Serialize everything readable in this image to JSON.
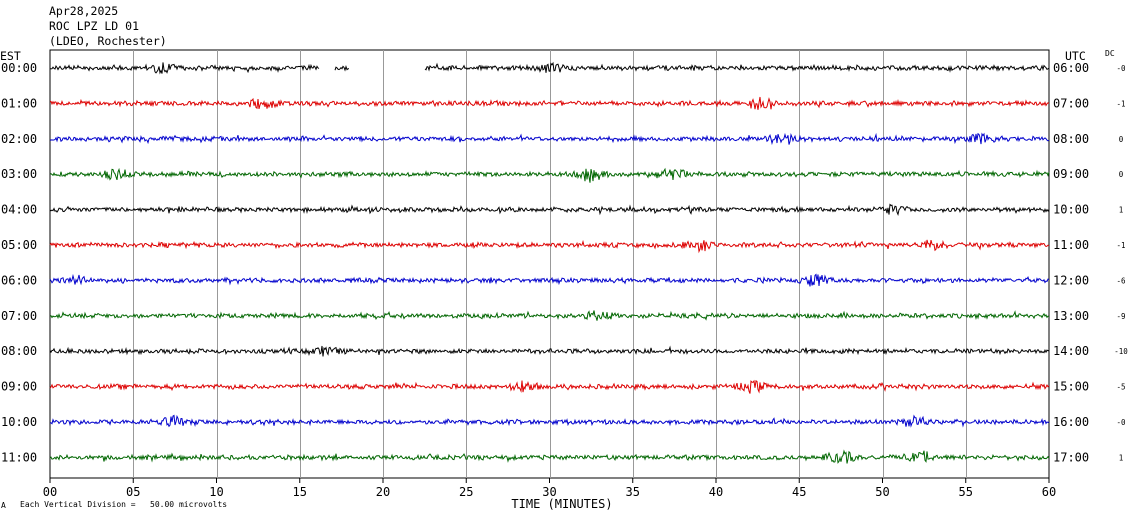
{
  "header": {
    "date": "Apr28,2025",
    "station": "ROC LPZ LD 01",
    "network": "(LDEO, Rochester)"
  },
  "left_zone_label": "EST",
  "right_zone_label": "UTC",
  "dc_header": "DC",
  "footer_note": "Each Vertical Division =   50.00 microvolts",
  "footer_mark": "A",
  "chart_data": {
    "type": "line",
    "title": "ROC LPZ LD 01",
    "xlabel": "TIME (MINUTES)",
    "xlim": [
      0,
      60
    ],
    "x_ticks": [
      "00",
      "05",
      "10",
      "15",
      "20",
      "25",
      "30",
      "35",
      "40",
      "45",
      "50",
      "55",
      "60"
    ],
    "grid": true,
    "trace_colors": [
      "#000000",
      "#dd0000",
      "#0000cc",
      "#006600"
    ],
    "series": [
      {
        "local": "00:00",
        "utc": "06:00",
        "dc": "-0"
      },
      {
        "local": "01:00",
        "utc": "07:00",
        "dc": "-1"
      },
      {
        "local": "02:00",
        "utc": "08:00",
        "dc": "0"
      },
      {
        "local": "03:00",
        "utc": "09:00",
        "dc": "0"
      },
      {
        "local": "04:00",
        "utc": "10:00",
        "dc": "1"
      },
      {
        "local": "05:00",
        "utc": "11:00",
        "dc": "-1"
      },
      {
        "local": "06:00",
        "utc": "12:00",
        "dc": "-6"
      },
      {
        "local": "07:00",
        "utc": "13:00",
        "dc": "-9"
      },
      {
        "local": "08:00",
        "utc": "14:00",
        "dc": "-10"
      },
      {
        "local": "09:00",
        "utc": "15:00",
        "dc": "-5"
      },
      {
        "local": "10:00",
        "utc": "16:00",
        "dc": "-0"
      },
      {
        "local": "11:00",
        "utc": "17:00",
        "dc": "1"
      }
    ],
    "data_gaps_minutes": [
      {
        "row": 0,
        "start": 16.2,
        "end": 17.1
      },
      {
        "row": 0,
        "start": 18.0,
        "end": 22.5
      }
    ],
    "events": [
      {
        "row": 0,
        "minute": 6.8,
        "amp": 2.2
      },
      {
        "row": 0,
        "minute": 30.0,
        "amp": 1.8
      },
      {
        "row": 1,
        "minute": 12.8,
        "amp": 2.5
      },
      {
        "row": 1,
        "minute": 42.5,
        "amp": 2.8
      },
      {
        "row": 2,
        "minute": 44.0,
        "amp": 2.3
      },
      {
        "row": 2,
        "minute": 56.0,
        "amp": 2.4
      },
      {
        "row": 3,
        "minute": 4.0,
        "amp": 2.1
      },
      {
        "row": 3,
        "minute": 32.5,
        "amp": 2.6
      },
      {
        "row": 3,
        "minute": 37.5,
        "amp": 2.4
      },
      {
        "row": 4,
        "minute": 50.5,
        "amp": 2.0
      },
      {
        "row": 5,
        "minute": 39.0,
        "amp": 2.6
      },
      {
        "row": 5,
        "minute": 53.0,
        "amp": 2.2
      },
      {
        "row": 6,
        "minute": 46.0,
        "amp": 2.8
      },
      {
        "row": 6,
        "minute": 1.5,
        "amp": 2.0
      },
      {
        "row": 7,
        "minute": 33.0,
        "amp": 1.9
      },
      {
        "row": 8,
        "minute": 16.5,
        "amp": 1.8
      },
      {
        "row": 9,
        "minute": 28.5,
        "amp": 2.2
      },
      {
        "row": 9,
        "minute": 42.2,
        "amp": 2.6
      },
      {
        "row": 10,
        "minute": 7.5,
        "amp": 2.3
      },
      {
        "row": 10,
        "minute": 52.0,
        "amp": 2.0
      },
      {
        "row": 11,
        "minute": 47.5,
        "amp": 3.0
      },
      {
        "row": 11,
        "minute": 52.5,
        "amp": 2.4
      }
    ]
  }
}
